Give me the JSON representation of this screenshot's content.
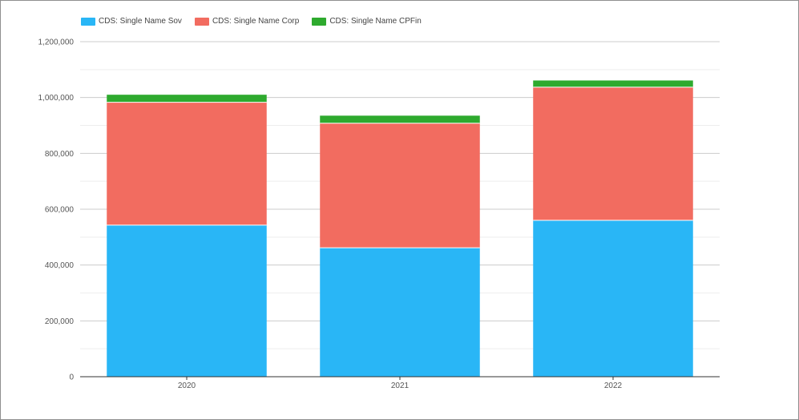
{
  "chart_data": {
    "type": "bar",
    "stacked": true,
    "categories": [
      "2020",
      "2021",
      "2022"
    ],
    "series": [
      {
        "name": "CDS: Single Name Sov",
        "color": "#29b6f6",
        "values": [
          543000,
          462000,
          560000
        ]
      },
      {
        "name": "CDS: Single Name Corp",
        "color": "#f26c60",
        "values": [
          440000,
          446000,
          477000
        ]
      },
      {
        "name": "CDS: Single Name CPFin",
        "color": "#2eaa2e",
        "values": [
          27000,
          27000,
          24000
        ]
      }
    ],
    "ylim": [
      0,
      1200000
    ],
    "yticks": [
      "0",
      "200,000",
      "400,000",
      "600,000",
      "800,000",
      "1,000,000",
      "1,200,000"
    ],
    "grid": true,
    "legend_position": "top-left"
  }
}
